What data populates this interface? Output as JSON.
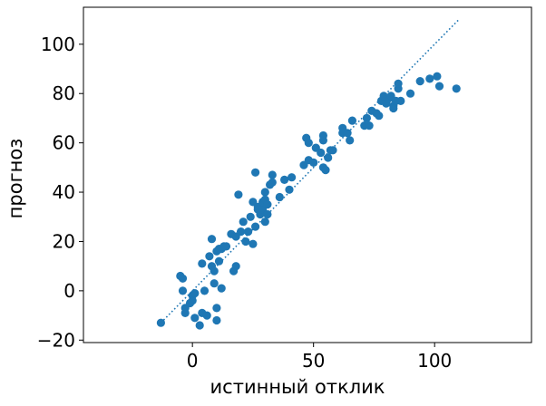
{
  "chart_data": {
    "type": "scatter",
    "title": "",
    "xlabel": "истинный отклик",
    "ylabel": "прогноз",
    "xlim": [
      -45,
      140
    ],
    "ylim": [
      -21,
      115
    ],
    "xticks": [
      0,
      50,
      100
    ],
    "yticks": [
      -20,
      0,
      20,
      40,
      60,
      80,
      100
    ],
    "grid": false,
    "legend": "none",
    "point_color": "#1f77b4",
    "reference_line": {
      "style": "dotted",
      "color": "#1f77b4",
      "from": [
        -13,
        -13
      ],
      "to": [
        110,
        110
      ]
    },
    "series": [
      {
        "points": [
          [
            -13,
            -13
          ],
          [
            -5,
            6
          ],
          [
            -4,
            0
          ],
          [
            -4,
            5
          ],
          [
            -3,
            -7
          ],
          [
            -3,
            -9
          ],
          [
            -1,
            -5
          ],
          [
            0,
            -2
          ],
          [
            0,
            -4
          ],
          [
            1,
            -1
          ],
          [
            1,
            -11
          ],
          [
            3,
            -14
          ],
          [
            4,
            11
          ],
          [
            4,
            -9
          ],
          [
            5,
            0
          ],
          [
            6,
            -10
          ],
          [
            7,
            14
          ],
          [
            8,
            10
          ],
          [
            8,
            21
          ],
          [
            9,
            3
          ],
          [
            9,
            8
          ],
          [
            10,
            16
          ],
          [
            10,
            -7
          ],
          [
            10,
            -12
          ],
          [
            11,
            17
          ],
          [
            11,
            12
          ],
          [
            12,
            1
          ],
          [
            12,
            17
          ],
          [
            13,
            18
          ],
          [
            14,
            18
          ],
          [
            16,
            23
          ],
          [
            17,
            8
          ],
          [
            18,
            10
          ],
          [
            18,
            22
          ],
          [
            19,
            39
          ],
          [
            20,
            24
          ],
          [
            21,
            28
          ],
          [
            22,
            20
          ],
          [
            23,
            24
          ],
          [
            24,
            30
          ],
          [
            25,
            36
          ],
          [
            25,
            19
          ],
          [
            26,
            48
          ],
          [
            26,
            26
          ],
          [
            27,
            34
          ],
          [
            27,
            33
          ],
          [
            28,
            31
          ],
          [
            29,
            33
          ],
          [
            29,
            36
          ],
          [
            30,
            40
          ],
          [
            30,
            28
          ],
          [
            30,
            37
          ],
          [
            31,
            31
          ],
          [
            31,
            35
          ],
          [
            32,
            43
          ],
          [
            33,
            44
          ],
          [
            33,
            47
          ],
          [
            36,
            38
          ],
          [
            38,
            45
          ],
          [
            40,
            41
          ],
          [
            41,
            46
          ],
          [
            46,
            51
          ],
          [
            47,
            62
          ],
          [
            48,
            60
          ],
          [
            48,
            53
          ],
          [
            50,
            52
          ],
          [
            51,
            58
          ],
          [
            53,
            56
          ],
          [
            54,
            50
          ],
          [
            54,
            61
          ],
          [
            54,
            63
          ],
          [
            55,
            49
          ],
          [
            56,
            54
          ],
          [
            57,
            57
          ],
          [
            58,
            57
          ],
          [
            62,
            64
          ],
          [
            62,
            66
          ],
          [
            64,
            64
          ],
          [
            65,
            61
          ],
          [
            66,
            69
          ],
          [
            71,
            67
          ],
          [
            72,
            70
          ],
          [
            73,
            67
          ],
          [
            74,
            73
          ],
          [
            76,
            72
          ],
          [
            77,
            71
          ],
          [
            78,
            77
          ],
          [
            79,
            79
          ],
          [
            80,
            76
          ],
          [
            81,
            78
          ],
          [
            82,
            79
          ],
          [
            83,
            75
          ],
          [
            83,
            74
          ],
          [
            84,
            77
          ],
          [
            85,
            82
          ],
          [
            85,
            84
          ],
          [
            86,
            77
          ],
          [
            90,
            80
          ],
          [
            94,
            85
          ],
          [
            98,
            86
          ],
          [
            101,
            87
          ],
          [
            102,
            83
          ],
          [
            109,
            82
          ]
        ]
      }
    ]
  }
}
